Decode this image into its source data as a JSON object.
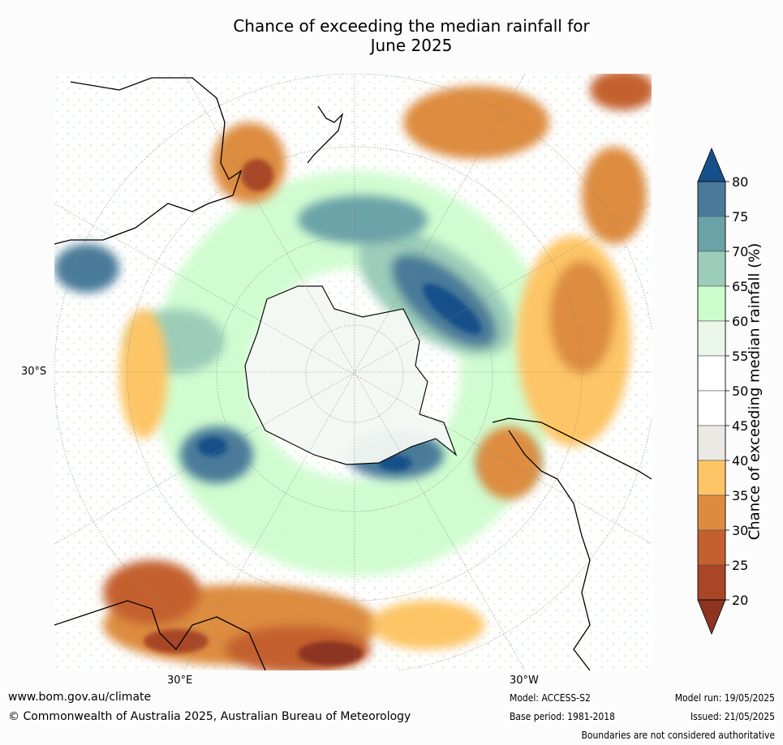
{
  "title_line1": "Chance of exceeding the median rainfall for",
  "title_line2": "June 2025",
  "axis_labels": {
    "lat_30s": "30°S",
    "lon_30e": "30°E",
    "lon_30w": "30°W"
  },
  "colorbar": {
    "label": "Chance of exceeding median rainfall (%)",
    "ticks": [
      "80",
      "75",
      "70",
      "65",
      "60",
      "55",
      "50",
      "45",
      "40",
      "35",
      "30",
      "25",
      "20"
    ],
    "colors": [
      "#175089",
      "#4a7a99",
      "#6aa3a8",
      "#9ccdb9",
      "#ccfccc",
      "#eaf6ea",
      "#ffffff",
      "#ffffff",
      "#ece9e4",
      "#fdc566",
      "#dd8c3f",
      "#c4602f",
      "#a84627",
      "#8d3520"
    ]
  },
  "footer": {
    "url": "www.bom.gov.au/climate",
    "copyright": "© Commonwealth of Australia 2025, Australian Bureau of Meteorology",
    "model": "Model: ACCESS-S2",
    "base_period": "Base period: 1981-2018",
    "model_run": "Model run: 19/05/2025",
    "issued": "Issued: 21/05/2025",
    "disclaimer": "Boundaries are not considered authoritative"
  }
}
